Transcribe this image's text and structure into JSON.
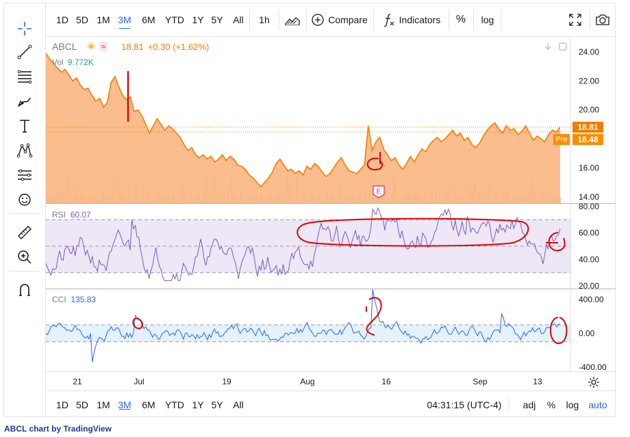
{
  "top_toolbar": {
    "ranges": [
      "1D",
      "5D",
      "1M",
      "3M",
      "6M",
      "YTD",
      "1Y",
      "5Y",
      "All"
    ],
    "active_range": "3M",
    "interval": "1h",
    "compare_label": "Compare",
    "indicators_label": "Indicators",
    "percent_label": "%",
    "log_label": "log"
  },
  "legend": {
    "symbol": "ABCL",
    "price": "18.81",
    "change": "+0.30 (+1.62%)",
    "volume_label": "Vol",
    "volume_value": "9.772K"
  },
  "rsi_panel": {
    "label": "RSI",
    "value": "60.07"
  },
  "cci_panel": {
    "label": "CCI",
    "value": "135.83"
  },
  "price_labels": {
    "last": "18.81",
    "pre_tag": "Pre",
    "pre_value": "18.48"
  },
  "earnings_marker": "E",
  "bottom_toolbar": {
    "ranges": [
      "1D",
      "5D",
      "1M",
      "3M",
      "6M",
      "YTD",
      "1Y",
      "5Y",
      "All"
    ],
    "active_range": "3M",
    "time": "04:31:15 (UTC-4)",
    "adj": "adj",
    "percent": "%",
    "log": "log",
    "auto": "auto"
  },
  "footer_text": "ABCL chart by TradingView",
  "colors": {
    "area_fill": "#f9b27a",
    "price_line": "#f57c00",
    "rsi_line": "#7e57c2",
    "rsi_band": "#ede7f6",
    "cci_line": "#2962ff",
    "cci_band": "#e3f2fd",
    "annotation": "#e00000",
    "accent": "#2962ff"
  },
  "chart_data": [
    {
      "type": "area",
      "name": "price",
      "x_ticks": [
        "21",
        "Jul",
        "19",
        "Aug",
        "16",
        "Sep",
        "13"
      ],
      "y_ticks": [
        "24.00",
        "22.00",
        "20.00",
        "18.00",
        "16.00",
        "14.00"
      ],
      "ylim": [
        13.8,
        24.8
      ],
      "values": [
        23.9,
        23.5,
        23.2,
        22.9,
        22.6,
        22.8,
        22.4,
        22.0,
        22.2,
        21.7,
        21.4,
        21.5,
        21.0,
        20.6,
        20.8,
        20.2,
        20.5,
        21.9,
        22.3,
        21.6,
        21.0,
        20.7,
        20.9,
        19.9,
        20.0,
        19.6,
        19.0,
        18.4,
        18.9,
        19.4,
        19.0,
        18.6,
        18.9,
        18.7,
        18.4,
        18.1,
        17.6,
        17.2,
        17.4,
        16.9,
        16.7,
        16.9,
        16.6,
        16.8,
        16.4,
        16.6,
        16.9,
        16.5,
        16.8,
        16.6,
        16.2,
        16.1,
        15.9,
        15.5,
        15.3,
        15.0,
        14.7,
        15.0,
        15.3,
        15.7,
        16.3,
        16.6,
        16.2,
        15.8,
        15.9,
        15.6,
        15.8,
        15.5,
        16.1,
        15.9,
        16.3,
        16.1,
        15.7,
        15.4,
        15.6,
        16.0,
        16.4,
        16.7,
        16.2,
        15.8,
        15.7,
        15.6,
        15.9,
        16.2,
        18.9,
        17.2,
        17.8,
        18.1,
        17.3,
        16.9,
        16.5,
        16.7,
        16.2,
        15.9,
        16.3,
        16.8,
        16.4,
        16.9,
        17.3,
        17.1,
        17.6,
        17.9,
        18.1,
        17.8,
        18.0,
        18.3,
        18.6,
        18.2,
        18.4,
        17.9,
        18.1,
        17.6,
        17.4,
        17.7,
        18.2,
        18.6,
        18.9,
        19.1,
        18.7,
        18.4,
        18.9,
        18.6,
        18.7,
        18.3,
        18.5,
        18.9,
        18.4,
        17.9,
        18.2,
        18.0,
        17.8,
        18.3,
        18.6,
        18.48,
        18.81
      ],
      "annotations": [
        "vertical red mark near Jul 1",
        "red circle around Aug 13 spike"
      ]
    },
    {
      "type": "line",
      "name": "RSI",
      "y_ticks": [
        "80.00",
        "60.00",
        "40.00",
        "20.00"
      ],
      "ylim": [
        18,
        82
      ],
      "bands": [
        30,
        50,
        70
      ],
      "last": 60.07
    },
    {
      "type": "line",
      "name": "CCI",
      "y_ticks": [
        "400.00",
        "0.00",
        "-400.00"
      ],
      "ylim": [
        -450,
        520
      ],
      "bands": [
        -100,
        100
      ],
      "last": 135.83
    }
  ]
}
